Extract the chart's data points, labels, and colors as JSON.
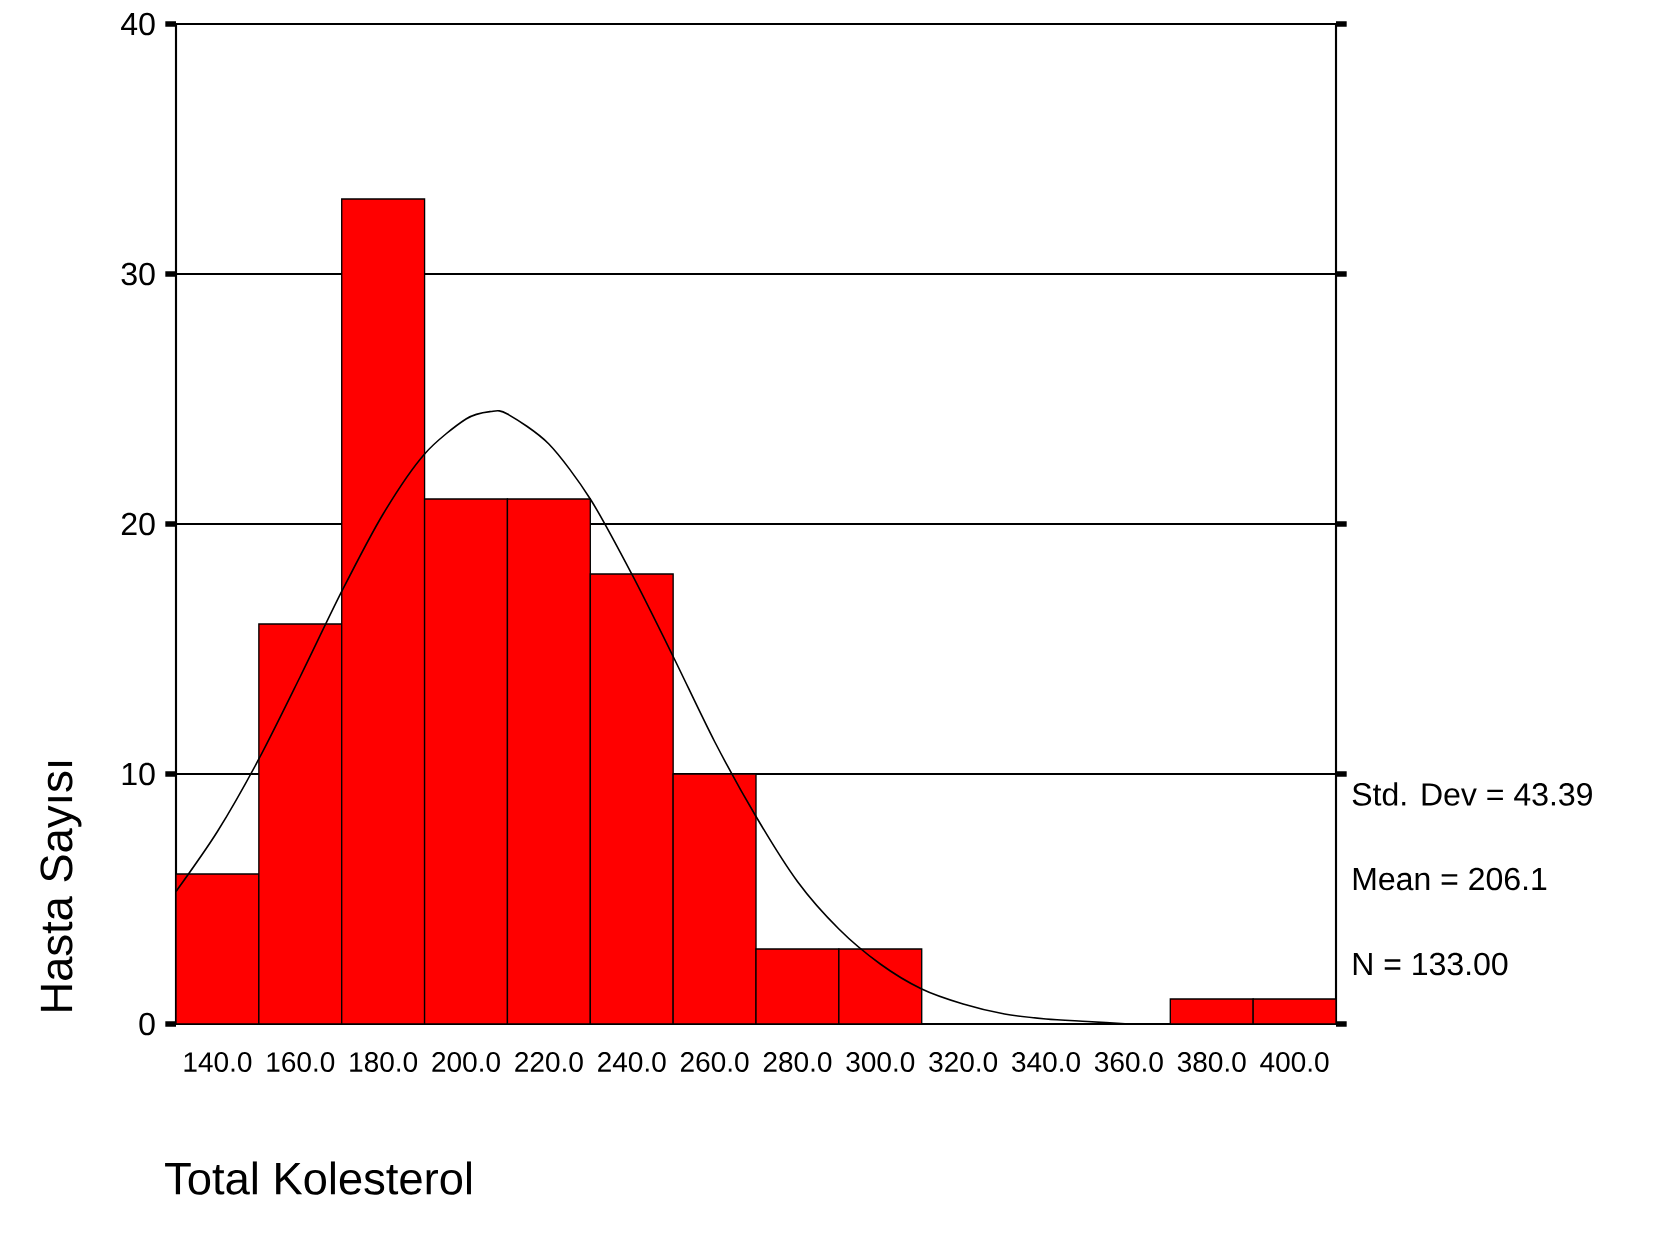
{
  "chart_data": {
    "type": "histogram",
    "xlabel": "Total Kolesterol",
    "ylabel": "Hasta Sayısı",
    "bins": [
      130,
      150,
      170,
      190,
      210,
      230,
      250,
      270,
      290,
      310,
      330,
      350,
      370,
      390,
      410
    ],
    "values": [
      6,
      16,
      33,
      21,
      21,
      18,
      10,
      3,
      3,
      0,
      0,
      0,
      1,
      1
    ],
    "color": "#ff0000",
    "series": [
      {
        "type": "line",
        "color": "#000000",
        "marker": "none",
        "x": [
          130,
          140,
          150,
          160,
          170,
          180,
          190,
          200,
          206,
          210,
          220,
          230,
          240,
          250,
          260,
          270,
          280,
          290,
          300,
          310,
          320,
          330,
          340,
          350,
          360
        ],
        "values": [
          5.3,
          7.7,
          10.6,
          13.9,
          17.3,
          20.4,
          22.8,
          24.2,
          24.5,
          24.4,
          23.2,
          21.0,
          18.0,
          14.7,
          11.3,
          8.3,
          5.7,
          3.8,
          2.4,
          1.4,
          0.8,
          0.4,
          0.2,
          0.1,
          0
        ]
      }
    ],
    "xlim": [
      130,
      410
    ],
    "ylim": [
      0,
      40
    ],
    "xticks": [
      {
        "value": 140,
        "label": "140.0"
      },
      {
        "value": 160,
        "label": "160.0"
      },
      {
        "value": 180,
        "label": "180.0"
      },
      {
        "value": 200,
        "label": "200.0"
      },
      {
        "value": 220,
        "label": "220.0"
      },
      {
        "value": 240,
        "label": "240.0"
      },
      {
        "value": 260,
        "label": "260.0"
      },
      {
        "value": 280,
        "label": "280.0"
      },
      {
        "value": 300,
        "label": "300.0"
      },
      {
        "value": 320,
        "label": "320.0"
      },
      {
        "value": 340,
        "label": "340.0"
      },
      {
        "value": 360,
        "label": "360.0"
      },
      {
        "value": 380,
        "label": "380.0"
      },
      {
        "value": 400,
        "label": "400.0"
      }
    ],
    "yticks": [
      0,
      10,
      20,
      30,
      40
    ],
    "grid": "y",
    "annotations": [
      "Std. Dev = 43.39",
      "Mean = 206.1",
      "N = 133.00"
    ]
  }
}
